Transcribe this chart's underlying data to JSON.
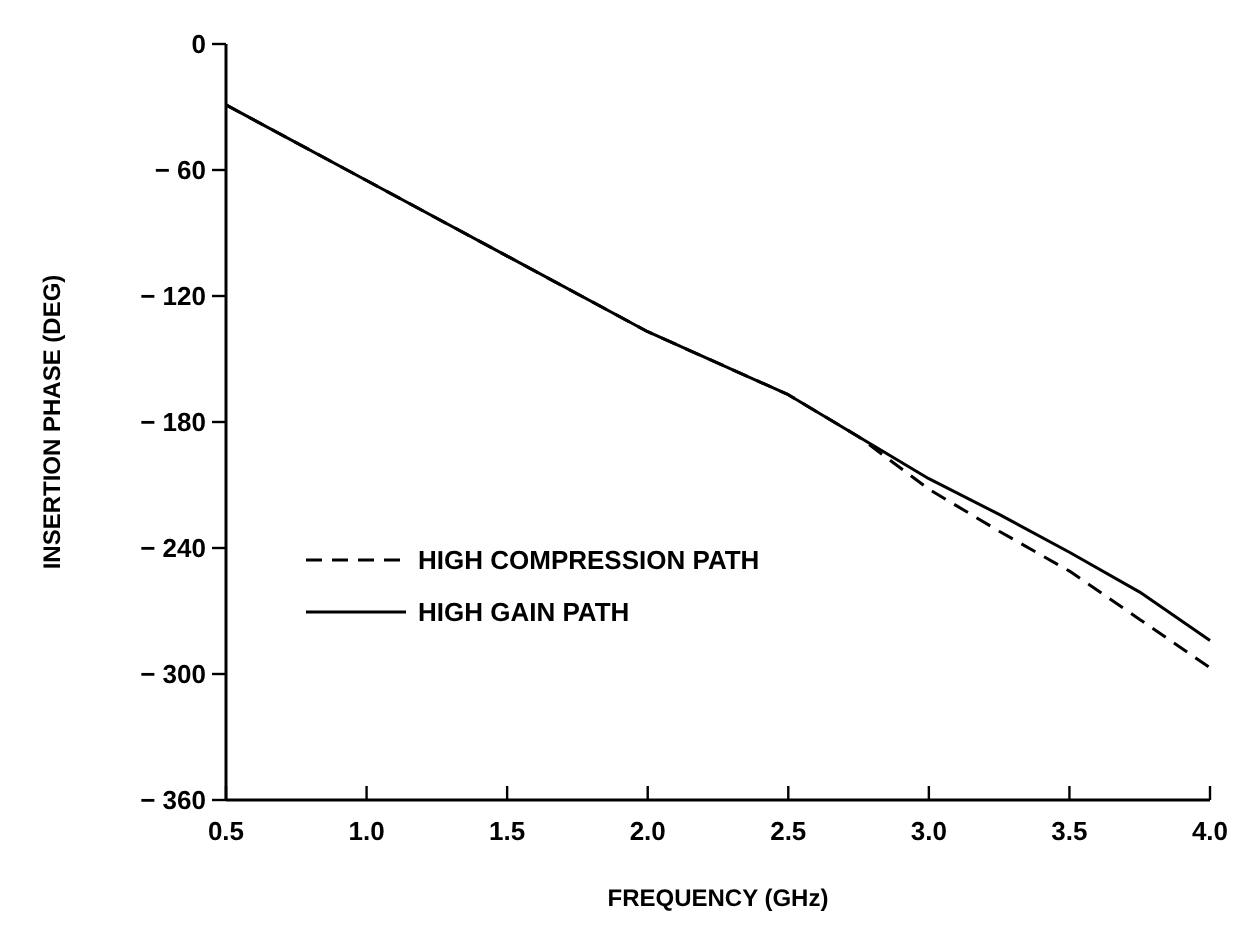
{
  "chart_data": {
    "type": "line",
    "xlabel": "FREQUENCY (GHz)",
    "ylabel": "INSERTION PHASE (DEG)",
    "x": [
      0.5,
      1.0,
      1.5,
      2.0,
      2.5,
      2.75,
      3.0,
      3.25,
      3.5,
      3.75,
      4.0
    ],
    "xlim": [
      0.5,
      4.0
    ],
    "xticks": [
      {
        "value": 0.5,
        "label": "0.5"
      },
      {
        "value": 1,
        "label": "1.0"
      },
      {
        "value": 1.5,
        "label": "1.5"
      },
      {
        "value": 2,
        "label": "2.0"
      },
      {
        "value": 2.5,
        "label": "2.5"
      },
      {
        "value": 3,
        "label": "3.0"
      },
      {
        "value": 3.5,
        "label": "3.5"
      },
      {
        "value": 4,
        "label": "4.0"
      }
    ],
    "ylim": [
      -360,
      0
    ],
    "yticks": [
      0,
      -60,
      -120,
      -180,
      -240,
      -300,
      -360
    ],
    "legend": "bottom left",
    "grid": false,
    "series": [
      {
        "name": "HIGH COMPRESSION PATH",
        "color": "#000000",
        "line_style": "dashed",
        "values": [
          -29,
          -65,
          -101,
          -137,
          -167,
          -187,
          -212,
          -232,
          -251,
          -274,
          -297
        ]
      },
      {
        "name": "HIGH GAIN PATH",
        "color": "#000000",
        "line_style": "solid",
        "values": [
          -29,
          -65,
          -101,
          -137,
          -167,
          -187,
          -207,
          -224,
          -242,
          -261,
          -284
        ]
      }
    ]
  }
}
